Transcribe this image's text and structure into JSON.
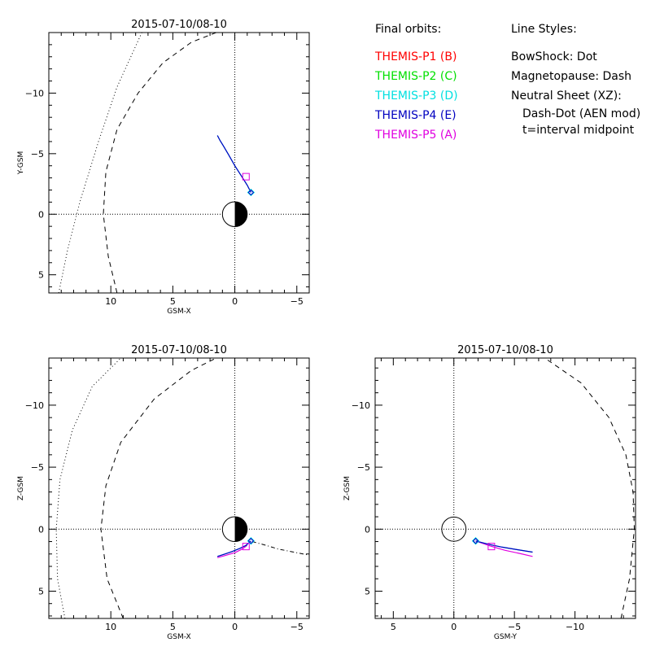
{
  "legend": {
    "orbits_title": "Final orbits:",
    "probes": [
      {
        "label": "THEMIS-P1 (B)",
        "color": "#ff0000"
      },
      {
        "label": "THEMIS-P2 (C)",
        "color": "#00e000"
      },
      {
        "label": "THEMIS-P3 (D)",
        "color": "#00e0e0"
      },
      {
        "label": "THEMIS-P4 (E)",
        "color": "#0000c0"
      },
      {
        "label": "THEMIS-P5 (A)",
        "color": "#e000e0"
      }
    ],
    "styles_title": "Line Styles:",
    "bowshock": "BowShock: Dot",
    "magnetopause": "Magnetopause: Dash",
    "neutral_sheet": "Neutral Sheet (XZ):",
    "neutral_sheet_style": "Dash-Dot (AEN mod)",
    "neutral_sheet_time": "t=interval midpoint"
  },
  "chart_data": [
    {
      "type": "line",
      "title": "2015-07-10/08-10",
      "xlabel": "GSM-X",
      "ylabel": "Y-GSM",
      "xlim": [
        15,
        -6
      ],
      "ylim": [
        -15,
        6.5
      ],
      "xticks": [
        10,
        5,
        0,
        -5
      ],
      "yticks": [
        -10,
        -5,
        0,
        5
      ],
      "bowshock": {
        "x": [
          14.2,
          13.5,
          12.5,
          11.0,
          9.5,
          7.5
        ],
        "y": [
          6.5,
          3.0,
          -1.0,
          -6.0,
          -10.5,
          -15.0
        ]
      },
      "magnetopause": {
        "x": [
          9.5,
          10.2,
          10.6,
          10.4,
          9.5,
          7.8,
          5.8,
          3.5,
          1.5
        ],
        "y": [
          6.5,
          3.5,
          0.0,
          -3.5,
          -7.0,
          -10.0,
          -12.5,
          -14.2,
          -15.0
        ]
      },
      "orbit": {
        "x": [
          1.4,
          1.2,
          0.9,
          0.5,
          0.0,
          -0.5,
          -1.0,
          -1.3
        ],
        "y": [
          -6.5,
          -6.1,
          -5.6,
          -4.9,
          -4.0,
          -3.2,
          -2.4,
          -1.8
        ]
      },
      "square_marker": {
        "x": -0.9,
        "y": -3.1
      },
      "diamond_marker": {
        "x": -1.3,
        "y": -1.8
      },
      "earth": true
    },
    {
      "type": "line",
      "title": "2015-07-10/08-10",
      "xlabel": "GSM-X",
      "ylabel": "Z-GSM",
      "xlim": [
        15,
        -6
      ],
      "ylim": [
        -13.8,
        7.2
      ],
      "xticks": [
        10,
        5,
        0,
        -5
      ],
      "yticks": [
        -10,
        -5,
        0,
        5
      ],
      "bowshock": {
        "x": [
          13.7,
          14.3,
          14.4,
          14.1,
          13.1,
          11.5,
          9.2
        ],
        "y": [
          7.2,
          4.0,
          0.0,
          -4.0,
          -8.0,
          -11.5,
          -13.8
        ]
      },
      "magnetopause": {
        "x": [
          9.0,
          10.3,
          10.8,
          10.4,
          9.2,
          6.5,
          3.5,
          1.5
        ],
        "y": [
          7.2,
          4.0,
          0.0,
          -3.5,
          -7.0,
          -10.5,
          -12.8,
          -13.8
        ]
      },
      "neutral_sheet": {
        "x": [
          -1.4,
          -2.5,
          -3.5,
          -4.5,
          -5.5,
          -6.0
        ],
        "y": [
          1.0,
          1.3,
          1.6,
          1.8,
          2.0,
          2.1
        ]
      },
      "orbit": {
        "x": [
          1.4,
          0.8,
          0.2,
          -0.4,
          -0.9,
          -1.3
        ],
        "y": [
          2.2,
          2.0,
          1.8,
          1.55,
          1.3,
          0.95
        ]
      },
      "orbit_p5": {
        "x": [
          1.4,
          0.7,
          0.0,
          -0.6,
          -1.0
        ],
        "y": [
          2.3,
          2.1,
          1.9,
          1.6,
          1.3
        ]
      },
      "square_marker": {
        "x": -0.9,
        "y": 1.4
      },
      "diamond_marker": {
        "x": -1.3,
        "y": 0.95
      },
      "earth": true
    },
    {
      "type": "line",
      "title": "2015-07-10/08-10",
      "xlabel": "GSM-Y",
      "ylabel": "Z-GSM",
      "xlim": [
        6.5,
        -15
      ],
      "ylim": [
        -13.8,
        7.2
      ],
      "xticks": [
        5,
        0,
        -5,
        -10
      ],
      "yticks": [
        -10,
        -5,
        0,
        5
      ],
      "magnetopause": {
        "x": [
          -13.8,
          -14.5,
          -14.9,
          -14.8,
          -14.2,
          -12.8,
          -10.5,
          -7.5
        ],
        "y": [
          7.2,
          4.0,
          0.0,
          -3.0,
          -6.0,
          -9.0,
          -11.8,
          -13.8
        ]
      },
      "orbit": {
        "x": [
          -1.8,
          -3.0,
          -4.0,
          -5.2,
          -6.5
        ],
        "y": [
          0.95,
          1.25,
          1.45,
          1.65,
          1.85
        ]
      },
      "orbit_p5": {
        "x": [
          -1.8,
          -3.0,
          -4.2,
          -5.4,
          -6.5
        ],
        "y": [
          0.95,
          1.35,
          1.7,
          1.95,
          2.2
        ]
      },
      "square_marker": {
        "x": -3.1,
        "y": 1.4
      },
      "diamond_marker": {
        "x": -1.8,
        "y": 0.95
      },
      "earth": "open"
    }
  ]
}
